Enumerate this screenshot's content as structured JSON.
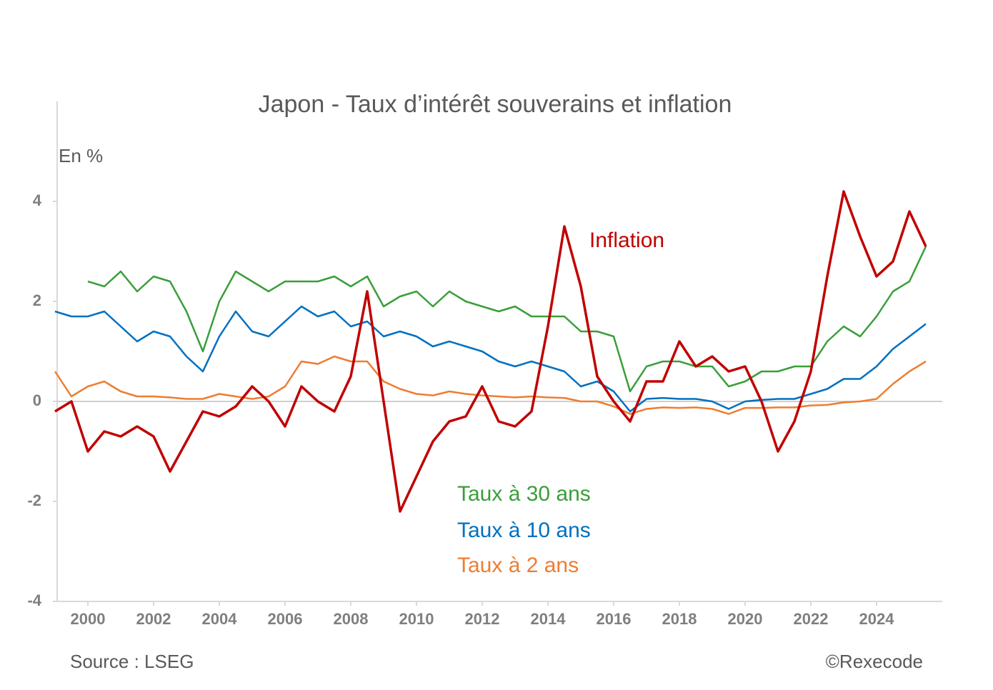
{
  "chart_data": {
    "type": "line",
    "title": "Japon - Taux d’intérêt souverains et inflation",
    "y_label": "En %",
    "source": "Source : LSEG",
    "credit": "©Rexecode",
    "x": [
      1999.0,
      1999.5,
      2000.0,
      2000.5,
      2001.0,
      2001.5,
      2002.0,
      2002.5,
      2003.0,
      2003.5,
      2004.0,
      2004.5,
      2005.0,
      2005.5,
      2006.0,
      2006.5,
      2007.0,
      2007.5,
      2008.0,
      2008.5,
      2009.0,
      2009.5,
      2010.0,
      2010.5,
      2011.0,
      2011.5,
      2012.0,
      2012.5,
      2013.0,
      2013.5,
      2014.0,
      2014.5,
      2015.0,
      2015.5,
      2016.0,
      2016.5,
      2017.0,
      2017.5,
      2018.0,
      2018.5,
      2019.0,
      2019.5,
      2020.0,
      2020.5,
      2021.0,
      2021.5,
      2022.0,
      2022.5,
      2023.0,
      2023.5,
      2024.0,
      2024.5,
      2025.0,
      2025.5
    ],
    "xlim": [
      1999,
      2026
    ],
    "xticks": [
      2000,
      2002,
      2004,
      2006,
      2008,
      2010,
      2012,
      2014,
      2016,
      2018,
      2020,
      2022,
      2024
    ],
    "ylim": [
      -4,
      6
    ],
    "yticks": [
      -4,
      -2,
      0,
      2,
      4
    ],
    "zero_line": true,
    "series": [
      {
        "name": "Taux à 30 ans",
        "color": "#3a9e3a",
        "values": [
          null,
          null,
          2.4,
          2.3,
          2.6,
          2.2,
          2.5,
          2.4,
          1.8,
          1.0,
          2.0,
          2.6,
          2.4,
          2.2,
          2.4,
          2.4,
          2.4,
          2.5,
          2.3,
          2.5,
          1.9,
          2.1,
          2.2,
          1.9,
          2.2,
          2.0,
          1.9,
          1.8,
          1.9,
          1.7,
          1.7,
          1.7,
          1.4,
          1.4,
          1.3,
          0.2,
          0.7,
          0.8,
          0.8,
          0.7,
          0.7,
          0.3,
          0.4,
          0.6,
          0.6,
          0.7,
          0.7,
          1.2,
          1.5,
          1.3,
          1.7,
          2.2,
          2.4,
          3.1
        ]
      },
      {
        "name": "Taux à 10 ans",
        "color": "#0070c0",
        "values": [
          1.8,
          1.7,
          1.7,
          1.8,
          1.5,
          1.2,
          1.4,
          1.3,
          0.9,
          0.6,
          1.3,
          1.8,
          1.4,
          1.3,
          1.6,
          1.9,
          1.7,
          1.8,
          1.5,
          1.6,
          1.3,
          1.4,
          1.3,
          1.1,
          1.2,
          1.1,
          1.0,
          0.8,
          0.7,
          0.8,
          0.7,
          0.6,
          0.3,
          0.4,
          0.2,
          -0.2,
          0.05,
          0.07,
          0.05,
          0.05,
          0.0,
          -0.15,
          0.0,
          0.03,
          0.05,
          0.05,
          0.15,
          0.25,
          0.45,
          0.45,
          0.7,
          1.05,
          1.3,
          1.55
        ]
      },
      {
        "name": "Taux à 2 ans",
        "color": "#ed7d31",
        "values": [
          0.6,
          0.1,
          0.3,
          0.4,
          0.2,
          0.1,
          0.1,
          0.08,
          0.05,
          0.05,
          0.15,
          0.1,
          0.05,
          0.1,
          0.3,
          0.8,
          0.75,
          0.9,
          0.8,
          0.8,
          0.4,
          0.25,
          0.15,
          0.12,
          0.2,
          0.15,
          0.12,
          0.1,
          0.08,
          0.1,
          0.08,
          0.07,
          0.0,
          0.0,
          -0.1,
          -0.25,
          -0.15,
          -0.12,
          -0.13,
          -0.12,
          -0.15,
          -0.25,
          -0.13,
          -0.13,
          -0.12,
          -0.12,
          -0.08,
          -0.07,
          -0.02,
          0.0,
          0.05,
          0.35,
          0.6,
          0.8
        ]
      },
      {
        "name": "Inflation",
        "color": "#c00000",
        "values": [
          -0.2,
          0.0,
          -1.0,
          -0.6,
          -0.7,
          -0.5,
          -0.7,
          -1.4,
          -0.8,
          -0.2,
          -0.3,
          -0.1,
          0.3,
          0.0,
          -0.5,
          0.3,
          0.0,
          -0.2,
          0.5,
          2.2,
          0.0,
          -2.2,
          -1.5,
          -0.8,
          -0.4,
          -0.3,
          0.3,
          -0.4,
          -0.5,
          -0.2,
          1.5,
          3.5,
          2.3,
          0.5,
          0.0,
          -0.4,
          0.4,
          0.4,
          1.2,
          0.7,
          0.9,
          0.6,
          0.7,
          0.0,
          -1.0,
          -0.4,
          0.6,
          2.5,
          4.2,
          3.3,
          2.5,
          2.8,
          3.8,
          3.1
        ]
      }
    ]
  }
}
